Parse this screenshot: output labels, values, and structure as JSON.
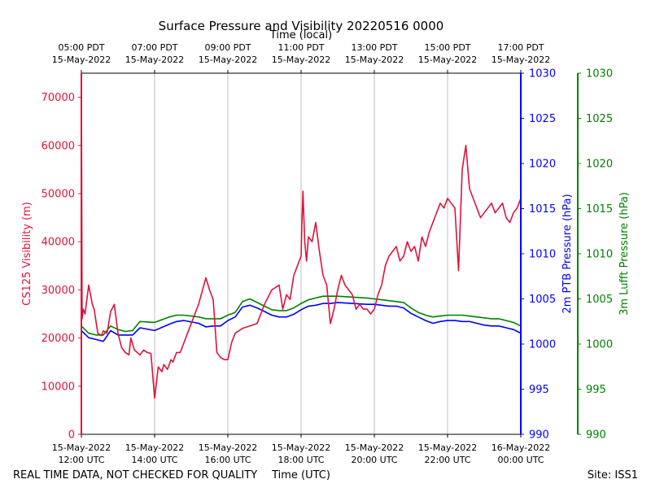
{
  "chart_data": {
    "type": "line",
    "title": "Surface Pressure and Visibility 20220516 0000",
    "top_xlabel": "Time (local)",
    "xlabel": "Time (UTC)",
    "footer_left": "REAL TIME DATA, NOT CHECKED FOR QUALITY",
    "footer_right": "Site: ISS1",
    "x_range_hours": [
      12,
      24
    ],
    "bottom_ticks": [
      {
        "hour": 12,
        "line1": "15-May-2022",
        "line2": "12:00 UTC"
      },
      {
        "hour": 14,
        "line1": "15-May-2022",
        "line2": "14:00 UTC"
      },
      {
        "hour": 16,
        "line1": "15-May-2022",
        "line2": "16:00 UTC"
      },
      {
        "hour": 18,
        "line1": "15-May-2022",
        "line2": "18:00 UTC"
      },
      {
        "hour": 20,
        "line1": "15-May-2022",
        "line2": "20:00 UTC"
      },
      {
        "hour": 22,
        "line1": "15-May-2022",
        "line2": "22:00 UTC"
      },
      {
        "hour": 24,
        "line1": "16-May-2022",
        "line2": "00:00 UTC"
      }
    ],
    "top_ticks": [
      {
        "hour": 12,
        "line1": "05:00 PDT",
        "line2": "15-May-2022"
      },
      {
        "hour": 14,
        "line1": "07:00 PDT",
        "line2": "15-May-2022"
      },
      {
        "hour": 16,
        "line1": "09:00 PDT",
        "line2": "15-May-2022"
      },
      {
        "hour": 18,
        "line1": "11:00 PDT",
        "line2": "15-May-2022"
      },
      {
        "hour": 20,
        "line1": "13:00 PDT",
        "line2": "15-May-2022"
      },
      {
        "hour": 22,
        "line1": "15:00 PDT",
        "line2": "15-May-2022"
      },
      {
        "hour": 24,
        "line1": "17:00 PDT",
        "line2": "15-May-2022"
      }
    ],
    "left_axis": {
      "label": "CS125 Visibility (m)",
      "color": "#dc143c",
      "ylim": [
        0,
        75000
      ],
      "ticks": [
        0,
        10000,
        20000,
        30000,
        40000,
        50000,
        60000,
        70000
      ]
    },
    "right_axis_1": {
      "label": "2m PTB Pressure (hPa)",
      "color": "#0000ff",
      "ylim": [
        990,
        1030
      ],
      "ticks": [
        990,
        995,
        1000,
        1005,
        1010,
        1015,
        1020,
        1025,
        1030
      ]
    },
    "right_axis_2": {
      "label": "3m Lufft Pressure (hPa)",
      "color": "#008000",
      "ylim": [
        990,
        1030
      ],
      "ticks": [
        990,
        995,
        1000,
        1005,
        1010,
        1015,
        1020,
        1025,
        1030
      ]
    },
    "series": [
      {
        "name": "CS125 Visibility",
        "axis": "left",
        "color": "#dc143c",
        "x": [
          12.0,
          12.02,
          12.05,
          12.1,
          12.2,
          12.3,
          12.35,
          12.45,
          12.55,
          12.6,
          12.7,
          12.8,
          12.9,
          13.0,
          13.1,
          13.2,
          13.3,
          13.35,
          13.45,
          13.6,
          13.7,
          13.8,
          13.9,
          14.0,
          14.1,
          14.2,
          14.25,
          14.3,
          14.35,
          14.45,
          14.5,
          14.6,
          14.7,
          14.8,
          15.0,
          15.2,
          15.4,
          15.5,
          15.6,
          15.7,
          15.8,
          15.9,
          16.0,
          16.1,
          16.2,
          16.4,
          16.6,
          16.8,
          17.0,
          17.2,
          17.4,
          17.5,
          17.6,
          17.7,
          17.8,
          17.9,
          18.0,
          18.02,
          18.05,
          18.1,
          18.15,
          18.2,
          18.3,
          18.4,
          18.5,
          18.6,
          18.7,
          18.8,
          18.9,
          19.0,
          19.1,
          19.2,
          19.3,
          19.4,
          19.5,
          19.6,
          19.7,
          19.8,
          19.9,
          20.0,
          20.1,
          20.2,
          20.3,
          20.4,
          20.5,
          20.6,
          20.7,
          20.8,
          20.9,
          21.0,
          21.1,
          21.2,
          21.3,
          21.4,
          21.5,
          21.6,
          21.7,
          21.8,
          21.9,
          22.0,
          22.1,
          22.2,
          22.3,
          22.4,
          22.5,
          22.6,
          22.7,
          22.8,
          22.9,
          23.0,
          23.1,
          23.2,
          23.3,
          23.4,
          23.5,
          23.6,
          23.7,
          23.8,
          23.9,
          23.95,
          24.0
        ],
        "y": [
          75000,
          24000,
          26000,
          25000,
          31000,
          27000,
          26000,
          21000,
          20500,
          21500,
          21000,
          25500,
          27000,
          21000,
          18000,
          17000,
          16500,
          20000,
          17500,
          16500,
          17500,
          17000,
          16800,
          7500,
          14000,
          13000,
          14500,
          14000,
          13500,
          15500,
          15000,
          17000,
          17000,
          19000,
          23000,
          27000,
          32500,
          30000,
          28000,
          17000,
          16000,
          15500,
          15500,
          19000,
          21000,
          22000,
          22500,
          23000,
          27000,
          30000,
          31000,
          26000,
          29000,
          28000,
          33000,
          35000,
          37000,
          43000,
          50500,
          40000,
          36000,
          41000,
          40000,
          44000,
          38000,
          33000,
          31000,
          23000,
          26000,
          30000,
          33000,
          31000,
          30000,
          29000,
          26000,
          27000,
          26000,
          26000,
          25000,
          26000,
          29000,
          31000,
          35000,
          37000,
          38000,
          39000,
          36000,
          37000,
          40000,
          38000,
          39000,
          36000,
          41000,
          39000,
          42000,
          44000,
          46000,
          48000,
          47000,
          49000,
          48000,
          47000,
          34000,
          55000,
          60000,
          51000,
          49000,
          47000,
          45000,
          46000,
          47000,
          48000,
          46000,
          47000,
          48000,
          45000,
          44000,
          46000,
          47000,
          48000,
          49000
        ],
        "legend": ""
      },
      {
        "name": "2m PTB Pressure",
        "axis": "right_1",
        "color": "#0000ff",
        "x": [
          12.0,
          12.2,
          12.4,
          12.6,
          12.8,
          13.0,
          13.2,
          13.4,
          13.6,
          14.0,
          14.4,
          14.6,
          14.8,
          15.2,
          15.4,
          15.6,
          15.8,
          16.0,
          16.2,
          16.4,
          16.6,
          16.8,
          17.0,
          17.2,
          17.4,
          17.6,
          17.8,
          18.0,
          18.2,
          18.4,
          18.6,
          18.8,
          19.0,
          19.4,
          19.8,
          20.0,
          20.2,
          20.4,
          20.6,
          20.8,
          21.0,
          21.2,
          21.4,
          21.6,
          21.8,
          22.0,
          22.2,
          22.4,
          22.6,
          22.8,
          23.0,
          23.2,
          23.4,
          23.6,
          23.8,
          24.0
        ],
        "y": [
          1001.5,
          1000.7,
          1000.5,
          1000.3,
          1001.5,
          1001.0,
          1001.0,
          1001.0,
          1001.8,
          1001.5,
          1002.2,
          1002.5,
          1002.6,
          1002.3,
          1001.9,
          1002.0,
          1002.0,
          1002.6,
          1003.0,
          1004.1,
          1004.3,
          1004.0,
          1003.6,
          1003.2,
          1003.0,
          1003.0,
          1003.3,
          1003.8,
          1004.2,
          1004.3,
          1004.5,
          1004.5,
          1004.6,
          1004.5,
          1004.4,
          1004.4,
          1004.3,
          1004.2,
          1004.2,
          1004.0,
          1003.4,
          1003.0,
          1002.6,
          1002.3,
          1002.5,
          1002.6,
          1002.6,
          1002.5,
          1002.5,
          1002.3,
          1002.1,
          1002.0,
          1002.0,
          1001.8,
          1001.6,
          1001.2
        ],
        "legend": ""
      },
      {
        "name": "3m Lufft Pressure",
        "axis": "right_2",
        "color": "#008000",
        "x": [
          12.0,
          12.2,
          12.4,
          12.6,
          12.8,
          13.0,
          13.2,
          13.4,
          13.6,
          14.0,
          14.4,
          14.6,
          14.8,
          15.2,
          15.4,
          15.6,
          15.8,
          16.0,
          16.2,
          16.4,
          16.6,
          16.8,
          17.0,
          17.2,
          17.4,
          17.6,
          17.8,
          18.0,
          18.2,
          18.4,
          18.6,
          18.8,
          19.0,
          19.4,
          19.8,
          20.0,
          20.2,
          20.4,
          20.6,
          20.8,
          21.0,
          21.2,
          21.4,
          21.6,
          21.8,
          22.0,
          22.2,
          22.4,
          22.6,
          22.8,
          23.0,
          23.2,
          23.4,
          23.6,
          23.8,
          24.0
        ],
        "y": [
          1002.0,
          1001.2,
          1001.0,
          1001.0,
          1002.0,
          1001.6,
          1001.4,
          1001.5,
          1002.5,
          1002.4,
          1003.0,
          1003.2,
          1003.2,
          1003.0,
          1002.8,
          1002.8,
          1002.8,
          1003.2,
          1003.5,
          1004.7,
          1005.0,
          1004.6,
          1004.2,
          1003.8,
          1003.7,
          1003.7,
          1004.0,
          1004.5,
          1004.9,
          1005.1,
          1005.3,
          1005.3,
          1005.3,
          1005.2,
          1005.1,
          1005.0,
          1004.9,
          1004.8,
          1004.7,
          1004.6,
          1004.0,
          1003.5,
          1003.2,
          1003.0,
          1003.1,
          1003.2,
          1003.2,
          1003.2,
          1003.1,
          1003.0,
          1002.9,
          1002.8,
          1002.8,
          1002.6,
          1002.4,
          1002.0
        ],
        "legend": ""
      }
    ]
  }
}
